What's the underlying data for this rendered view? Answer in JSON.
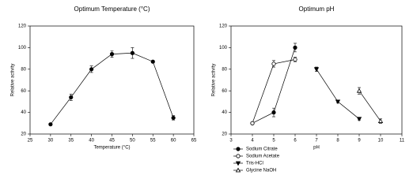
{
  "chart_data": [
    {
      "type": "line",
      "title": "Optimum Temperature (°C)",
      "x_label": "Temperature (°C)",
      "y_label": "Relative activity",
      "xlim": [
        25,
        65
      ],
      "xticks": [
        25,
        30,
        35,
        40,
        45,
        50,
        55,
        60,
        65
      ],
      "ylim": [
        20,
        120
      ],
      "yticks": [
        20,
        40,
        60,
        80,
        100,
        120
      ],
      "series": [
        {
          "marker": "circle",
          "filled": true,
          "color": "#000000",
          "x": [
            30,
            35,
            40,
            45,
            50,
            55,
            60
          ],
          "values": [
            29,
            54,
            80,
            94,
            95,
            87,
            35
          ],
          "errors": [
            1,
            3,
            3,
            3,
            5,
            1,
            2
          ]
        }
      ]
    },
    {
      "type": "line",
      "title": "Optimum pH",
      "x_label": "pH",
      "y_label": "Relative activity",
      "xlim": [
        3,
        11
      ],
      "xticks": [
        3,
        4,
        5,
        6,
        7,
        8,
        9,
        10,
        11
      ],
      "ylim": [
        20,
        120
      ],
      "yticks": [
        20,
        40,
        60,
        80,
        100,
        120
      ],
      "legend": "below-left",
      "series": [
        {
          "name": "Sodium Citrate",
          "marker": "circle",
          "filled": true,
          "color": "#000000",
          "x": [
            4,
            5,
            6
          ],
          "values": [
            30,
            40,
            100
          ],
          "errors": [
            1,
            4,
            4
          ]
        },
        {
          "name": "Sodium Acetate",
          "marker": "circle",
          "filled": false,
          "color": "#000000",
          "x": [
            4,
            5,
            6
          ],
          "values": [
            30,
            85,
            89
          ],
          "errors": [
            1,
            3,
            2
          ]
        },
        {
          "name": "Tris-HCl",
          "marker": "triangle-down",
          "filled": true,
          "color": "#000000",
          "x": [
            7,
            8,
            9
          ],
          "values": [
            80,
            50,
            34
          ],
          "errors": [
            2,
            1,
            1
          ]
        },
        {
          "name": "Glycine NaOH",
          "marker": "triangle-up",
          "filled": false,
          "color": "#000000",
          "x": [
            9,
            10
          ],
          "values": [
            60,
            32
          ],
          "errors": [
            3,
            2
          ]
        }
      ]
    }
  ]
}
